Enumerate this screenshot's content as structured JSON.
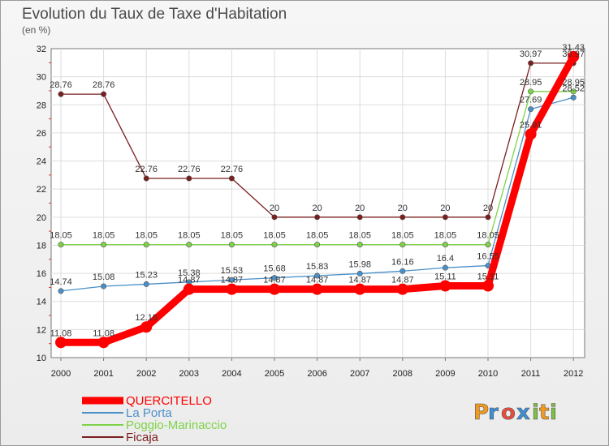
{
  "chart_data": {
    "type": "line",
    "title": "Evolution du Taux de Taxe d'Habitation",
    "subtitle": "(en %)",
    "xlabel": "",
    "ylabel": "",
    "x": [
      "2000",
      "2001",
      "2002",
      "2003",
      "2004",
      "2005",
      "2006",
      "2007",
      "2008",
      "2009",
      "2010",
      "2011",
      "2012"
    ],
    "ylim": [
      10,
      32
    ],
    "yticks": [
      10,
      12,
      14,
      16,
      18,
      20,
      22,
      24,
      26,
      28,
      30,
      32
    ],
    "grid": true,
    "legend_position": "bottom-left",
    "series": [
      {
        "name": "QUERCITELLO",
        "color": "#ff0000",
        "values": [
          11.08,
          11.08,
          12.18,
          14.87,
          14.87,
          14.87,
          14.87,
          14.87,
          14.87,
          15.11,
          15.11,
          25.91,
          31.43
        ],
        "labels": [
          "11.08",
          "11.08",
          "12.18",
          "14.87",
          "14.87",
          "14.87",
          "14.87",
          "14.87",
          "14.87",
          "15.11",
          "15.11",
          "25.91",
          "31.43"
        ]
      },
      {
        "name": "La Porta",
        "color": "#4a90c8",
        "values": [
          14.74,
          15.08,
          15.23,
          15.38,
          15.53,
          15.68,
          15.83,
          15.98,
          16.16,
          16.4,
          16.55,
          27.69,
          28.52
        ],
        "labels": [
          "14.74",
          "15.08",
          "15.23",
          "15.38",
          "15.53",
          "15.68",
          "15.83",
          "15.98",
          "16.16",
          "16.4",
          "16.55",
          "27.69",
          "28.52"
        ]
      },
      {
        "name": "Poggio-Marinaccio",
        "color": "#7ed348",
        "values": [
          18.05,
          18.05,
          18.05,
          18.05,
          18.05,
          18.05,
          18.05,
          18.05,
          18.05,
          18.05,
          18.05,
          28.95,
          28.95
        ],
        "labels": [
          "18.05",
          "18.05",
          "18.05",
          "18.05",
          "18.05",
          "18.05",
          "18.05",
          "18.05",
          "18.05",
          "18.05",
          "18.05",
          "28.95",
          "28.95"
        ]
      },
      {
        "name": "Ficaja",
        "color": "#7a1e1e",
        "values": [
          28.76,
          28.76,
          22.76,
          22.76,
          22.76,
          20,
          20,
          20,
          20,
          20,
          20,
          30.97,
          30.97
        ],
        "labels": [
          "28.76",
          "28.76",
          "22.76",
          "22.76",
          "22.76",
          "20",
          "20",
          "20",
          "20",
          "20",
          "20",
          "30.97",
          "30.97"
        ]
      }
    ]
  },
  "logo": {
    "letters": [
      "P",
      "r",
      "o",
      "x",
      "i",
      "t",
      "i"
    ],
    "colors": [
      "#f39a1e",
      "#3c8fd2",
      "#e94b3c",
      "#3c8fd2",
      "#7ec143",
      "#f39a1e",
      "#7ec143"
    ]
  }
}
